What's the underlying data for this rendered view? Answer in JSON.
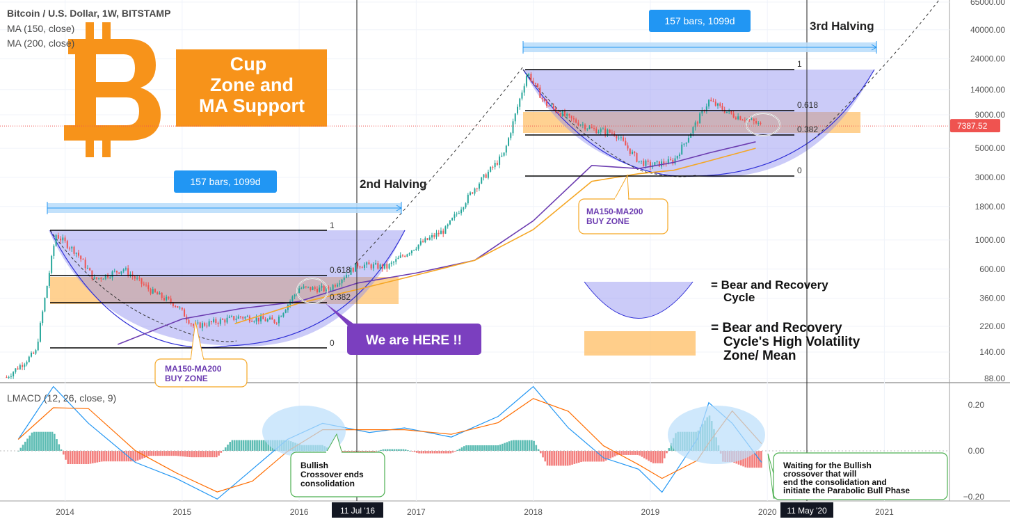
{
  "header": {
    "symbol_line": "Bitcoin / U.S. Dollar, 1W, BITSTAMP",
    "ma150_label": "MA (150, close)",
    "ma200_label": "MA (200, close)",
    "indicator_label": "LMACD (12, 26, close, 9)"
  },
  "title_box": {
    "line1": "Cup",
    "line2": "Zone and",
    "line3": "MA Support"
  },
  "price_axis": {
    "ticks": [
      "65000.00",
      "40000.00",
      "24000.00",
      "14000.00",
      "9000.00",
      "5000.00",
      "3000.00",
      "1800.00",
      "1000.00",
      "600.00",
      "360.00",
      "220.00",
      "140.00",
      "88.00"
    ],
    "tick_values": [
      65000,
      40000,
      24000,
      14000,
      9000,
      5000,
      3000,
      1800,
      1000,
      600,
      360,
      220,
      140,
      88
    ],
    "current_price": "7387.52",
    "current_value": 7387.52
  },
  "macd_axis": {
    "ticks": [
      "0.20",
      "0.00",
      "−0.20"
    ],
    "tick_values": [
      0.2,
      0.0,
      -0.2
    ]
  },
  "time_axis": {
    "labels": [
      "2014",
      "2015",
      "2016",
      "2017",
      "2018",
      "2019",
      "2020",
      "2021"
    ],
    "highlight1": "11 Jul '16",
    "highlight2": "11 May '20"
  },
  "annotations": {
    "bars_label_1": "157 bars, 1099d",
    "bars_label_2": "157 bars, 1099d",
    "halving2": "2nd Halving",
    "halving3": "3rd Halving",
    "we_are_here": "We are HERE !!",
    "buy_zone_1_line1": "MA150-MA200",
    "buy_zone_1_line2": "BUY ZONE",
    "buy_zone_2_line1": "MA150-MA200",
    "buy_zone_2_line2": "BUY ZONE",
    "crossover_line1": "Bullish",
    "crossover_line2": "Crossover ends",
    "crossover_line3": "consolidation",
    "waiting_line1": "Waiting for the Bullish",
    "waiting_line2": "crossover that will",
    "waiting_line3": "end the consolidation and",
    "waiting_line4": "initiate the Parabolic Bull Phase",
    "legend_cup_line1": "= Bear and Recovery",
    "legend_cup_line2": "Cycle",
    "legend_zone_line1": "= Bear and Recovery",
    "legend_zone_line2": "Cycle's High Volatility",
    "legend_zone_line3": "Zone/ Mean"
  },
  "fib_levels_1": {
    "l1": "1",
    "l0618": "0.618",
    "l0382": "0.382",
    "l0": "0"
  },
  "fib_levels_2": {
    "l1": "1",
    "l0618": "0.618",
    "l0382": "0.382",
    "l0": "0"
  },
  "colors": {
    "bull": "#26a69a",
    "bear": "#ef5350",
    "cup_fill": "#8c8cf0",
    "zone_fill": "#ffbe63",
    "ma150": "#6b3bb0",
    "ma200": "#f5a623",
    "macd": "#2196f3",
    "signal": "#ff6d00",
    "bitcoin_orange": "#f7931a",
    "label_blue": "#2196f3",
    "here_purple": "#7b3fbf"
  },
  "chart_data": {
    "type": "line",
    "title": "Bitcoin / U.S. Dollar, 1W, BITSTAMP",
    "scale": "log",
    "series": [
      {
        "name": "Bitcoin / U.S. Dollar",
        "x": [
          2013.5,
          2013.75,
          2013.92,
          2014.1,
          2014.25,
          2014.5,
          2014.75,
          2014.95,
          2015.1,
          2015.5,
          2015.8,
          2016.0,
          2016.25,
          2016.5,
          2016.75,
          2017.0,
          2017.25,
          2017.5,
          2017.75,
          2017.95,
          2018.1,
          2018.3,
          2018.5,
          2018.7,
          2018.9,
          2019.0,
          2019.2,
          2019.4,
          2019.5,
          2019.7,
          2019.85,
          2019.95
        ],
        "y": [
          90,
          140,
          1100,
          800,
          500,
          600,
          400,
          320,
          220,
          260,
          240,
          430,
          420,
          650,
          620,
          900,
          1200,
          2500,
          4500,
          19000,
          11000,
          8500,
          7000,
          6500,
          4000,
          3700,
          4000,
          8000,
          11500,
          9000,
          8200,
          7400
        ]
      },
      {
        "name": "MA (150, close)",
        "x": [
          2014.45,
          2015.0,
          2015.5,
          2016.0,
          2016.5,
          2017.0,
          2017.5,
          2018.0,
          2018.5,
          2018.9,
          2019.2,
          2019.5,
          2019.9
        ],
        "y": [
          160,
          250,
          300,
          340,
          470,
          560,
          700,
          1400,
          3700,
          3500,
          3900,
          4600,
          5600
        ]
      },
      {
        "name": "MA (200, close)",
        "x": [
          2015.45,
          2016.0,
          2016.5,
          2017.0,
          2017.5,
          2018.0,
          2018.5,
          2018.9,
          2019.2,
          2019.5,
          2019.9
        ],
        "y": [
          230,
          330,
          420,
          540,
          700,
          1200,
          2800,
          3200,
          3400,
          4000,
          5000
        ]
      }
    ],
    "macd": {
      "name": "LMACD (12, 26, close, 9)",
      "x": [
        2013.6,
        2013.9,
        2014.2,
        2014.6,
        2014.95,
        2015.3,
        2015.6,
        2015.9,
        2016.2,
        2016.6,
        2016.9,
        2017.3,
        2017.7,
        2018.0,
        2018.3,
        2018.6,
        2018.9,
        2019.1,
        2019.4,
        2019.5,
        2019.7,
        2019.95
      ],
      "y": [
        0.05,
        0.28,
        0.12,
        -0.05,
        -0.12,
        -0.21,
        -0.08,
        0.05,
        0.12,
        0.08,
        0.1,
        0.06,
        0.15,
        0.28,
        0.1,
        -0.03,
        -0.08,
        -0.18,
        0.05,
        0.21,
        0.12,
        -0.05
      ]
    },
    "xlim": [
      2013.45,
      2021.55
    ],
    "ylim": [
      80,
      70000
    ]
  }
}
